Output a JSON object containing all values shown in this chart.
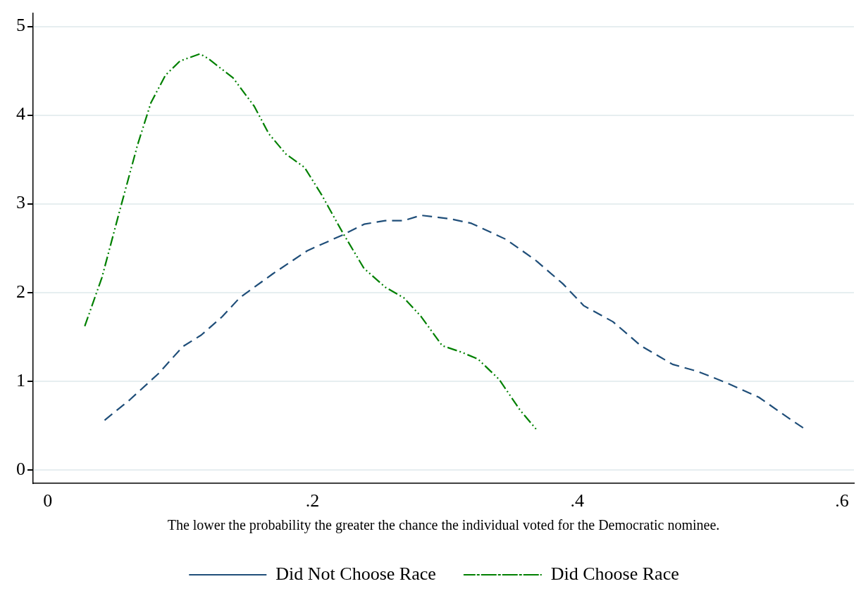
{
  "chart_data": {
    "type": "line",
    "xlabel": "The lower the probability the greater the chance the individual voted for the Democratic nominee.",
    "xlim": [
      -0.011,
      0.609
    ],
    "xticks": [
      0,
      {
        "value": 0.2,
        "label": ".2"
      },
      {
        "value": 0.4,
        "label": ".4"
      },
      {
        "value": 0.6,
        "label": ".6"
      }
    ],
    "ylim": [
      -0.15,
      5.15
    ],
    "yticks": [
      0,
      1,
      2,
      3,
      4,
      5
    ],
    "grid": "y",
    "legend": "bottom",
    "marker": "none",
    "series": [
      {
        "name": "Did Not Choose Race",
        "color": "#1f4e79",
        "line_style": "dashed",
        "x": [
          0.043,
          0.062,
          0.084,
          0.102,
          0.116,
          0.132,
          0.145,
          0.17,
          0.196,
          0.223,
          0.239,
          0.255,
          0.269,
          0.282,
          0.304,
          0.32,
          0.346,
          0.368,
          0.389,
          0.405,
          0.427,
          0.448,
          0.472,
          0.491,
          0.513,
          0.537,
          0.561,
          0.572
        ],
        "values": [
          0.56,
          0.79,
          1.09,
          1.39,
          1.52,
          1.73,
          1.94,
          2.21,
          2.47,
          2.65,
          2.77,
          2.81,
          2.81,
          2.87,
          2.83,
          2.78,
          2.6,
          2.37,
          2.1,
          1.85,
          1.67,
          1.4,
          1.19,
          1.11,
          0.98,
          0.82,
          0.57,
          0.46
        ]
      },
      {
        "name": "Did Choose Race",
        "color": "#008000",
        "line_style": "dotted",
        "x": [
          0.028,
          0.041,
          0.054,
          0.068,
          0.078,
          0.089,
          0.1,
          0.115,
          0.121,
          0.14,
          0.156,
          0.167,
          0.18,
          0.194,
          0.207,
          0.223,
          0.239,
          0.255,
          0.269,
          0.282,
          0.298,
          0.312,
          0.325,
          0.341,
          0.357,
          0.37
        ],
        "values": [
          1.62,
          2.17,
          2.9,
          3.67,
          4.14,
          4.45,
          4.61,
          4.69,
          4.64,
          4.42,
          4.1,
          3.79,
          3.56,
          3.41,
          3.1,
          2.67,
          2.27,
          2.06,
          1.94,
          1.73,
          1.4,
          1.33,
          1.25,
          1.02,
          0.67,
          0.44
        ]
      }
    ]
  }
}
